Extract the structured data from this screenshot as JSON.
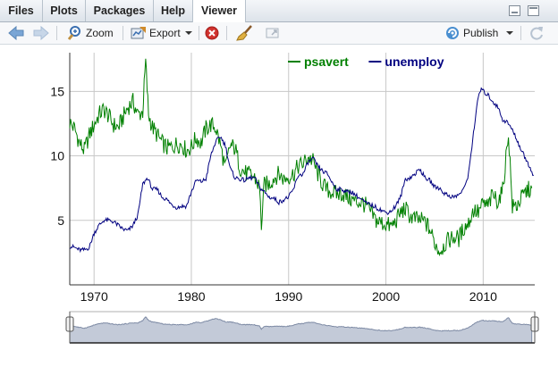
{
  "tabs": [
    {
      "label": "Files"
    },
    {
      "label": "Plots"
    },
    {
      "label": "Packages"
    },
    {
      "label": "Help"
    },
    {
      "label": "Viewer"
    }
  ],
  "toolbar": {
    "zoom_label": "Zoom",
    "export_label": "Export",
    "publish_label": "Publish"
  },
  "icons": [
    "back-arrow-icon",
    "forward-arrow-icon",
    "zoom-icon",
    "export-icon",
    "remove-icon",
    "broom-icon",
    "popout-icon",
    "publish-icon",
    "refresh-icon"
  ],
  "colors": {
    "psavert": "#008000",
    "unemploy": "#000080",
    "navigator": "#8a96ac"
  },
  "chart_data": {
    "type": "line",
    "x_unit": "year",
    "xlim": [
      1967.5,
      2015.3
    ],
    "ylim": [
      0,
      18
    ],
    "x_ticks": [
      "1970",
      "1980",
      "1990",
      "2000",
      "2010"
    ],
    "y_ticks": [
      "5",
      "10",
      "15"
    ],
    "legend_position": "top",
    "grid": true,
    "range_selector": true,
    "series": [
      {
        "name": "psavert",
        "color": "#008000",
        "values": [
          [
            1967.5,
            12.6
          ],
          [
            1968.0,
            12.1
          ],
          [
            1968.5,
            11.0
          ],
          [
            1969.0,
            10.4
          ],
          [
            1969.5,
            11.6
          ],
          [
            1970.0,
            12.4
          ],
          [
            1970.5,
            13.2
          ],
          [
            1971.0,
            13.6
          ],
          [
            1971.5,
            13.1
          ],
          [
            1972.0,
            12.4
          ],
          [
            1972.5,
            12.2
          ],
          [
            1973.0,
            13.0
          ],
          [
            1973.5,
            13.8
          ],
          [
            1974.0,
            14.2
          ],
          [
            1974.5,
            13.2
          ],
          [
            1975.0,
            13.4
          ],
          [
            1975.3,
            17.3
          ],
          [
            1975.6,
            13.2
          ],
          [
            1976.0,
            12.2
          ],
          [
            1976.5,
            11.6
          ],
          [
            1977.0,
            11.0
          ],
          [
            1977.5,
            10.6
          ],
          [
            1978.0,
            10.7
          ],
          [
            1978.5,
            10.9
          ],
          [
            1979.0,
            10.9
          ],
          [
            1979.5,
            10.4
          ],
          [
            1980.0,
            10.7
          ],
          [
            1980.5,
            11.4
          ],
          [
            1981.0,
            11.0
          ],
          [
            1981.5,
            12.1
          ],
          [
            1982.0,
            12.4
          ],
          [
            1982.5,
            12.2
          ],
          [
            1983.0,
            10.8
          ],
          [
            1983.5,
            9.0
          ],
          [
            1984.0,
            10.8
          ],
          [
            1984.5,
            10.6
          ],
          [
            1985.0,
            9.1
          ],
          [
            1985.5,
            8.7
          ],
          [
            1986.0,
            8.5
          ],
          [
            1986.5,
            8.3
          ],
          [
            1987.0,
            7.6
          ],
          [
            1987.2,
            4.6
          ],
          [
            1987.5,
            7.8
          ],
          [
            1988.0,
            7.8
          ],
          [
            1988.5,
            8.3
          ],
          [
            1989.0,
            8.6
          ],
          [
            1989.5,
            8.2
          ],
          [
            1990.0,
            8.4
          ],
          [
            1990.5,
            8.6
          ],
          [
            1991.0,
            9.2
          ],
          [
            1991.5,
            9.4
          ],
          [
            1992.0,
            9.9
          ],
          [
            1992.5,
            9.6
          ],
          [
            1993.0,
            8.6
          ],
          [
            1993.5,
            7.8
          ],
          [
            1994.0,
            7.3
          ],
          [
            1994.5,
            7.2
          ],
          [
            1995.0,
            7.0
          ],
          [
            1995.5,
            7.1
          ],
          [
            1996.0,
            6.8
          ],
          [
            1996.5,
            6.6
          ],
          [
            1997.0,
            6.4
          ],
          [
            1997.5,
            6.4
          ],
          [
            1998.0,
            6.1
          ],
          [
            1998.5,
            5.5
          ],
          [
            1999.0,
            5.0
          ],
          [
            1999.5,
            4.8
          ],
          [
            2000.0,
            4.7
          ],
          [
            2000.5,
            4.5
          ],
          [
            2001.0,
            4.9
          ],
          [
            2001.5,
            5.6
          ],
          [
            2002.0,
            5.9
          ],
          [
            2002.5,
            5.3
          ],
          [
            2003.0,
            5.1
          ],
          [
            2003.5,
            5.0
          ],
          [
            2004.0,
            4.9
          ],
          [
            2004.5,
            4.3
          ],
          [
            2005.0,
            3.3
          ],
          [
            2005.5,
            2.6
          ],
          [
            2006.0,
            3.1
          ],
          [
            2006.5,
            3.5
          ],
          [
            2007.0,
            3.7
          ],
          [
            2007.5,
            3.6
          ],
          [
            2008.0,
            4.4
          ],
          [
            2008.5,
            4.8
          ],
          [
            2009.0,
            5.8
          ],
          [
            2009.5,
            5.6
          ],
          [
            2010.0,
            6.3
          ],
          [
            2010.5,
            6.1
          ],
          [
            2011.0,
            7.0
          ],
          [
            2011.5,
            6.5
          ],
          [
            2012.0,
            7.3
          ],
          [
            2012.6,
            11.8
          ],
          [
            2013.0,
            6.0
          ],
          [
            2013.5,
            6.2
          ],
          [
            2014.0,
            6.8
          ],
          [
            2014.5,
            7.3
          ],
          [
            2015.0,
            7.5
          ]
        ]
      },
      {
        "name": "unemploy",
        "color": "#000080",
        "values": [
          [
            1967.5,
            3.0
          ],
          [
            1968.0,
            2.9
          ],
          [
            1968.5,
            2.7
          ],
          [
            1969.0,
            2.7
          ],
          [
            1969.5,
            2.9
          ],
          [
            1970.0,
            4.0
          ],
          [
            1970.5,
            4.6
          ],
          [
            1971.0,
            5.0
          ],
          [
            1971.5,
            5.0
          ],
          [
            1972.0,
            4.9
          ],
          [
            1972.5,
            4.6
          ],
          [
            1973.0,
            4.3
          ],
          [
            1973.5,
            4.2
          ],
          [
            1974.0,
            4.6
          ],
          [
            1974.5,
            5.4
          ],
          [
            1975.0,
            7.8
          ],
          [
            1975.5,
            8.3
          ],
          [
            1976.0,
            7.4
          ],
          [
            1976.5,
            7.4
          ],
          [
            1977.0,
            6.8
          ],
          [
            1977.5,
            6.6
          ],
          [
            1978.0,
            6.2
          ],
          [
            1978.5,
            6.0
          ],
          [
            1979.0,
            6.1
          ],
          [
            1979.5,
            6.1
          ],
          [
            1980.0,
            7.2
          ],
          [
            1980.5,
            8.1
          ],
          [
            1981.0,
            8.0
          ],
          [
            1981.5,
            8.2
          ],
          [
            1982.0,
            10.0
          ],
          [
            1982.5,
            11.1
          ],
          [
            1983.0,
            11.5
          ],
          [
            1983.5,
            10.8
          ],
          [
            1984.0,
            9.0
          ],
          [
            1984.5,
            8.3
          ],
          [
            1985.0,
            8.2
          ],
          [
            1985.5,
            8.1
          ],
          [
            1986.0,
            8.3
          ],
          [
            1986.5,
            8.3
          ],
          [
            1987.0,
            7.6
          ],
          [
            1987.5,
            7.2
          ],
          [
            1988.0,
            6.8
          ],
          [
            1988.5,
            6.7
          ],
          [
            1989.0,
            6.4
          ],
          [
            1989.5,
            6.6
          ],
          [
            1990.0,
            6.8
          ],
          [
            1990.5,
            7.4
          ],
          [
            1991.0,
            8.5
          ],
          [
            1991.5,
            8.6
          ],
          [
            1992.0,
            9.5
          ],
          [
            1992.5,
            9.8
          ],
          [
            1993.0,
            9.2
          ],
          [
            1993.5,
            8.8
          ],
          [
            1994.0,
            8.6
          ],
          [
            1994.5,
            7.9
          ],
          [
            1995.0,
            7.4
          ],
          [
            1995.5,
            7.4
          ],
          [
            1996.0,
            7.2
          ],
          [
            1996.5,
            7.2
          ],
          [
            1997.0,
            6.9
          ],
          [
            1997.5,
            6.6
          ],
          [
            1998.0,
            6.3
          ],
          [
            1998.5,
            6.2
          ],
          [
            1999.0,
            6.0
          ],
          [
            1999.5,
            5.8
          ],
          [
            2000.0,
            5.6
          ],
          [
            2000.5,
            5.7
          ],
          [
            2001.0,
            6.1
          ],
          [
            2001.5,
            6.8
          ],
          [
            2002.0,
            8.2
          ],
          [
            2002.5,
            8.3
          ],
          [
            2003.0,
            8.6
          ],
          [
            2003.5,
            9.0
          ],
          [
            2004.0,
            8.3
          ],
          [
            2004.5,
            8.1
          ],
          [
            2005.0,
            7.6
          ],
          [
            2005.5,
            7.5
          ],
          [
            2006.0,
            7.1
          ],
          [
            2006.5,
            6.9
          ],
          [
            2007.0,
            6.8
          ],
          [
            2007.5,
            7.0
          ],
          [
            2008.0,
            7.4
          ],
          [
            2008.5,
            8.6
          ],
          [
            2009.0,
            11.8
          ],
          [
            2009.5,
            14.6
          ],
          [
            2009.8,
            15.2
          ],
          [
            2010.0,
            15.0
          ],
          [
            2010.5,
            14.7
          ],
          [
            2011.0,
            14.2
          ],
          [
            2011.5,
            13.8
          ],
          [
            2012.0,
            12.8
          ],
          [
            2012.5,
            12.6
          ],
          [
            2013.0,
            12.0
          ],
          [
            2013.5,
            11.2
          ],
          [
            2014.0,
            10.3
          ],
          [
            2014.5,
            9.6
          ],
          [
            2015.0,
            8.8
          ],
          [
            2015.2,
            8.5
          ]
        ]
      }
    ]
  }
}
